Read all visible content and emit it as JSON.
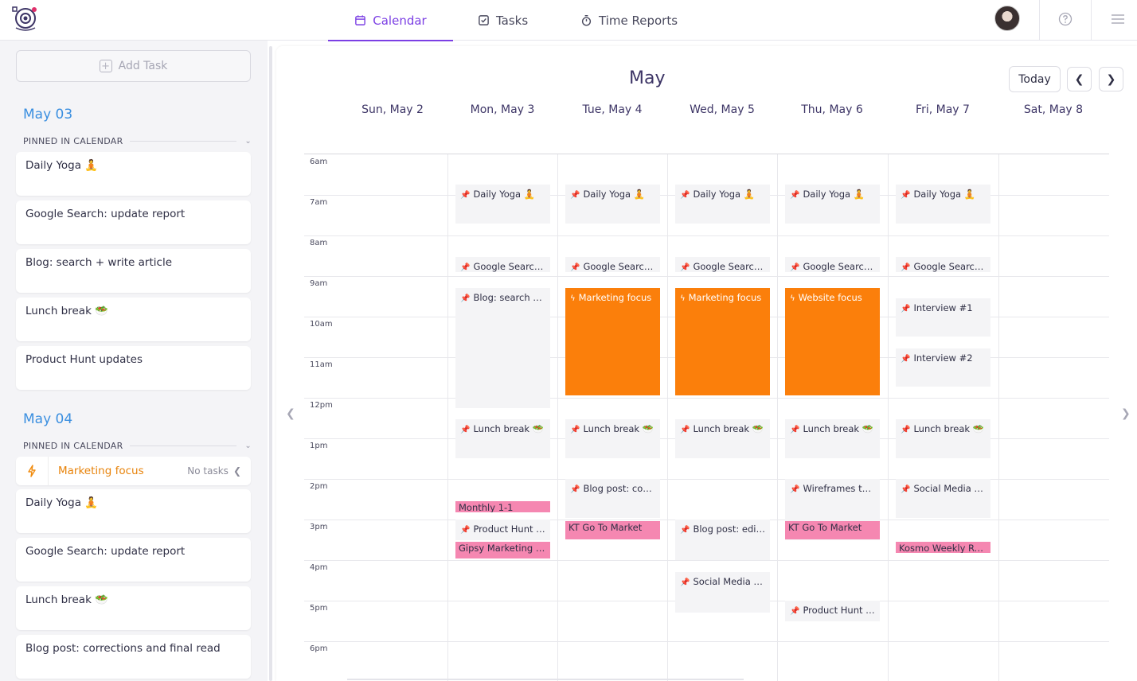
{
  "nav": {
    "tabs": [
      {
        "label": "Calendar",
        "icon": "calendar-icon",
        "active": true
      },
      {
        "label": "Tasks",
        "icon": "tasks-icon",
        "active": false
      },
      {
        "label": "Time Reports",
        "icon": "stopwatch-icon",
        "active": false
      }
    ]
  },
  "sidebar": {
    "add_task_label": "Add Task",
    "days": [
      {
        "heading": "May 03",
        "pinned_label": "PINNED IN CALENDAR",
        "tasks": [
          "Daily Yoga 🧘",
          "Google Search: update report",
          "Blog: search + write article",
          "Lunch break 🥗",
          "Product Hunt updates"
        ]
      },
      {
        "heading": "May 04",
        "pinned_label": "PINNED IN CALENDAR",
        "focus": {
          "name": "Marketing focus",
          "status": "No tasks"
        },
        "tasks": [
          "Daily Yoga 🧘",
          "Google Search: update report",
          "Lunch break 🥗",
          "Blog post: corrections and final read"
        ]
      }
    ]
  },
  "calendar": {
    "month": "May",
    "today_label": "Today",
    "days": [
      "Sun, May 2",
      "Mon, May 3",
      "Tue, May 4",
      "Wed, May 5",
      "Thu, May 6",
      "Fri, May 7",
      "Sat, May 8"
    ],
    "hours": [
      "6am",
      "7am",
      "8am",
      "9am",
      "10am",
      "11am",
      "12pm",
      "1pm",
      "2pm",
      "3pm",
      "4pm",
      "5pm",
      "6pm"
    ],
    "events": [
      {
        "day": 1,
        "start": 6.75,
        "end": 7.7,
        "type": "task",
        "title": "Daily Yoga 🧘"
      },
      {
        "day": 2,
        "start": 6.75,
        "end": 7.7,
        "type": "task",
        "title": "Daily Yoga 🧘"
      },
      {
        "day": 3,
        "start": 6.75,
        "end": 7.7,
        "type": "task",
        "title": "Daily Yoga 🧘"
      },
      {
        "day": 4,
        "start": 6.75,
        "end": 7.7,
        "type": "task",
        "title": "Daily Yoga 🧘"
      },
      {
        "day": 5,
        "start": 6.75,
        "end": 7.7,
        "type": "task",
        "title": "Daily Yoga 🧘"
      },
      {
        "day": 1,
        "start": 8.52,
        "end": 8.9,
        "type": "task",
        "title": "Google Search: update report"
      },
      {
        "day": 2,
        "start": 8.52,
        "end": 8.9,
        "type": "task",
        "title": "Google Search: update report"
      },
      {
        "day": 3,
        "start": 8.52,
        "end": 8.9,
        "type": "task",
        "title": "Google Search: update report"
      },
      {
        "day": 4,
        "start": 8.52,
        "end": 8.9,
        "type": "task",
        "title": "Google Search: update report"
      },
      {
        "day": 5,
        "start": 8.52,
        "end": 8.9,
        "type": "task",
        "title": "Google Search: update report"
      },
      {
        "day": 1,
        "start": 9.3,
        "end": 12.25,
        "type": "task",
        "title": "Blog: search + write article"
      },
      {
        "day": 2,
        "start": 9.3,
        "end": 11.95,
        "type": "focus",
        "title": "Marketing focus"
      },
      {
        "day": 3,
        "start": 9.3,
        "end": 11.95,
        "type": "focus",
        "title": "Marketing focus"
      },
      {
        "day": 4,
        "start": 9.3,
        "end": 11.95,
        "type": "focus",
        "title": "Website focus"
      },
      {
        "day": 5,
        "start": 9.54,
        "end": 10.5,
        "type": "task",
        "title": "Interview #1"
      },
      {
        "day": 5,
        "start": 10.78,
        "end": 11.72,
        "type": "task",
        "title": "Interview #2"
      },
      {
        "day": 1,
        "start": 12.52,
        "end": 13.5,
        "type": "task",
        "title": "Lunch break 🥗"
      },
      {
        "day": 2,
        "start": 12.52,
        "end": 13.5,
        "type": "task",
        "title": "Lunch break 🥗"
      },
      {
        "day": 3,
        "start": 12.52,
        "end": 13.5,
        "type": "task",
        "title": "Lunch break 🥗"
      },
      {
        "day": 4,
        "start": 12.52,
        "end": 13.5,
        "type": "task",
        "title": "Lunch break 🥗"
      },
      {
        "day": 5,
        "start": 12.52,
        "end": 13.5,
        "type": "task",
        "title": "Lunch break 🥗"
      },
      {
        "day": 1,
        "start": 14.55,
        "end": 14.82,
        "type": "meeting",
        "title": "Monthly 1-1"
      },
      {
        "day": 1,
        "start": 15.0,
        "end": 15.5,
        "type": "task",
        "title": "Product Hunt updates"
      },
      {
        "day": 1,
        "start": 15.55,
        "end": 15.97,
        "type": "meeting",
        "title": "Gipsy Marketing Meeting"
      },
      {
        "day": 2,
        "start": 14.0,
        "end": 14.97,
        "type": "task",
        "title": "Blog post: corrections and final read"
      },
      {
        "day": 2,
        "start": 15.04,
        "end": 15.5,
        "type": "meeting",
        "title": "KT Go To Market"
      },
      {
        "day": 3,
        "start": 15.0,
        "end": 16.0,
        "type": "task",
        "title": "Blog post: edit draft"
      },
      {
        "day": 3,
        "start": 16.3,
        "end": 17.3,
        "type": "task",
        "title": "Social Media updates"
      },
      {
        "day": 4,
        "start": 14.0,
        "end": 15.5,
        "type": "task",
        "title": "Wireframes to update"
      },
      {
        "day": 4,
        "start": 15.04,
        "end": 15.5,
        "type": "meeting",
        "title": "KT Go To Market"
      },
      {
        "day": 4,
        "start": 17.0,
        "end": 17.5,
        "type": "task",
        "title": "Product Hunt updates"
      },
      {
        "day": 5,
        "start": 14.0,
        "end": 14.97,
        "type": "task",
        "title": "Social Media updates"
      },
      {
        "day": 5,
        "start": 15.55,
        "end": 15.82,
        "type": "meeting",
        "title": "Kosmo Weekly Recap"
      }
    ]
  },
  "colors": {
    "accent": "#7b3fe4",
    "day_heading": "#3b8fe0",
    "focus": "#fb7f0b",
    "meeting": "#f587b1",
    "pin": "#e0306a"
  }
}
